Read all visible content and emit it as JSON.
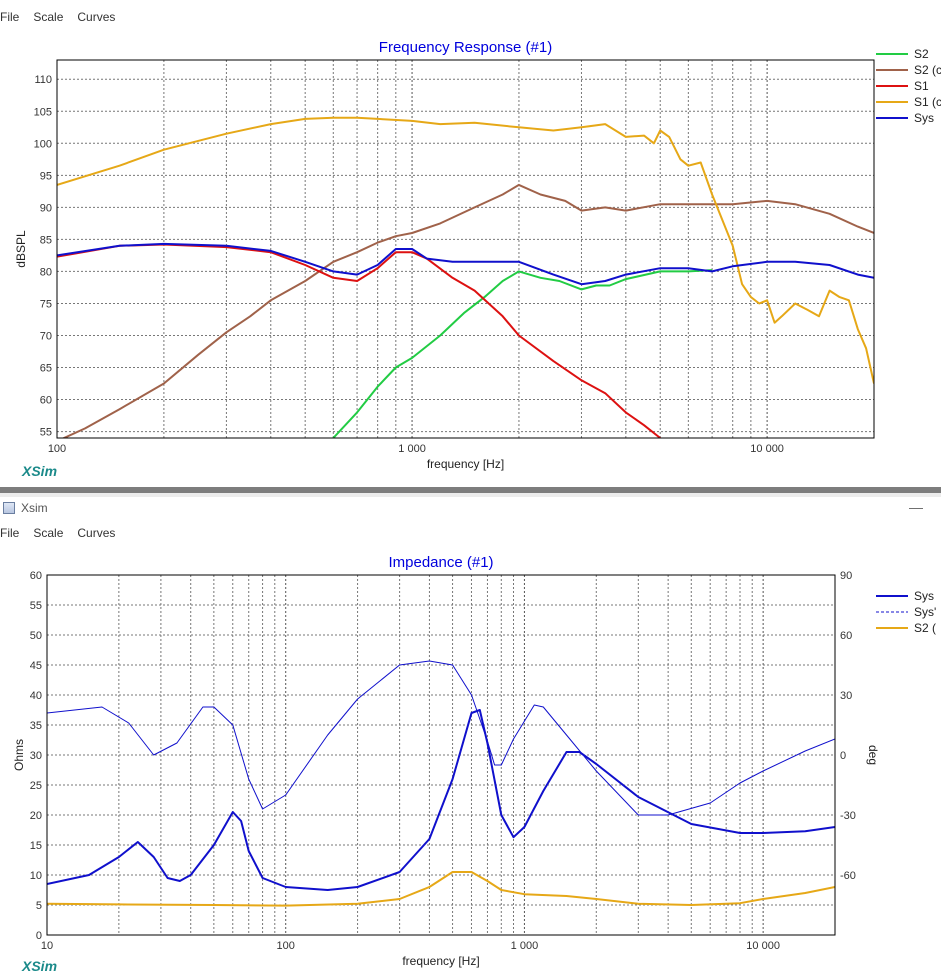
{
  "window": {
    "title": "Xsim",
    "minimize_glyph": "—"
  },
  "menu": {
    "items": [
      "File",
      "Scale",
      "Curves"
    ]
  },
  "brand": "XSim",
  "chart_data": [
    {
      "type": "line",
      "title": "Frequency Response (#1)",
      "xlabel": "frequency [Hz]",
      "ylabel": "dBSPL",
      "xscale": "log",
      "xlim": [
        100,
        20000
      ],
      "ylim": [
        54,
        113
      ],
      "xticklabels": [
        {
          "v": 100,
          "t": "100"
        },
        {
          "v": 1000,
          "t": "1 000"
        },
        {
          "v": 10000,
          "t": "10 000"
        }
      ],
      "yticks": [
        55,
        60,
        65,
        70,
        75,
        80,
        85,
        90,
        95,
        100,
        105,
        110
      ],
      "grid": true,
      "legend_position": "right",
      "series": [
        {
          "name": "S2",
          "color": "#22cc44",
          "style": "solid",
          "width": 2,
          "points": [
            [
              600,
              54
            ],
            [
              700,
              58
            ],
            [
              800,
              62
            ],
            [
              900,
              65
            ],
            [
              1000,
              66.5
            ],
            [
              1200,
              70
            ],
            [
              1400,
              73.5
            ],
            [
              1600,
              76
            ],
            [
              1800,
              78.5
            ],
            [
              2000,
              80
            ],
            [
              2300,
              79
            ],
            [
              2600,
              78.5
            ],
            [
              3000,
              77.2
            ],
            [
              3300,
              77.8
            ],
            [
              3600,
              77.8
            ],
            [
              4000,
              78.8
            ],
            [
              5000,
              80
            ],
            [
              6000,
              80
            ],
            [
              7000,
              80.2
            ]
          ]
        },
        {
          "name": "S2 (c",
          "color": "#a0624a",
          "style": "solid",
          "width": 2,
          "points": [
            [
              100,
              53.5
            ],
            [
              120,
              55.5
            ],
            [
              150,
              58.5
            ],
            [
              200,
              62.5
            ],
            [
              250,
              67
            ],
            [
              300,
              70.5
            ],
            [
              350,
              73
            ],
            [
              400,
              75.5
            ],
            [
              500,
              78.5
            ],
            [
              600,
              81.5
            ],
            [
              700,
              83
            ],
            [
              800,
              84.5
            ],
            [
              900,
              85.5
            ],
            [
              1000,
              86
            ],
            [
              1200,
              87.5
            ],
            [
              1500,
              90
            ],
            [
              1800,
              92
            ],
            [
              2000,
              93.5
            ],
            [
              2300,
              92
            ],
            [
              2700,
              91
            ],
            [
              3000,
              89.5
            ],
            [
              3500,
              90
            ],
            [
              4000,
              89.5
            ],
            [
              5000,
              90.5
            ],
            [
              6000,
              90.5
            ],
            [
              7000,
              90.5
            ],
            [
              8000,
              90.5
            ],
            [
              10000,
              91
            ],
            [
              12000,
              90.5
            ],
            [
              15000,
              89
            ],
            [
              18000,
              87
            ],
            [
              20000,
              86
            ]
          ]
        },
        {
          "name": "S1",
          "color": "#dd1111",
          "style": "solid",
          "width": 2,
          "points": [
            [
              100,
              82.3
            ],
            [
              150,
              84
            ],
            [
              200,
              84.2
            ],
            [
              300,
              83.8
            ],
            [
              400,
              83
            ],
            [
              500,
              81
            ],
            [
              600,
              79
            ],
            [
              700,
              78.5
            ],
            [
              800,
              80.5
            ],
            [
              900,
              83
            ],
            [
              1000,
              83
            ],
            [
              1100,
              82
            ],
            [
              1300,
              79
            ],
            [
              1500,
              77
            ],
            [
              1800,
              73
            ],
            [
              2000,
              70
            ],
            [
              2500,
              66
            ],
            [
              3000,
              63
            ],
            [
              3500,
              61
            ],
            [
              4000,
              58
            ],
            [
              4500,
              56
            ],
            [
              5000,
              54
            ]
          ]
        },
        {
          "name": "S1 (c",
          "color": "#e6a817",
          "style": "solid",
          "width": 2,
          "points": [
            [
              100,
              93.5
            ],
            [
              150,
              96.5
            ],
            [
              200,
              99
            ],
            [
              300,
              101.5
            ],
            [
              400,
              103
            ],
            [
              500,
              103.8
            ],
            [
              600,
              104
            ],
            [
              700,
              104
            ],
            [
              800,
              103.8
            ],
            [
              1000,
              103.5
            ],
            [
              1200,
              103
            ],
            [
              1500,
              103.2
            ],
            [
              2000,
              102.5
            ],
            [
              2500,
              102
            ],
            [
              3000,
              102.5
            ],
            [
              3500,
              103
            ],
            [
              4000,
              101
            ],
            [
              4500,
              101.2
            ],
            [
              4800,
              100
            ],
            [
              5000,
              102
            ],
            [
              5300,
              101
            ],
            [
              5700,
              97.5
            ],
            [
              6000,
              96.5
            ],
            [
              6500,
              97
            ],
            [
              7000,
              92
            ],
            [
              8000,
              84
            ],
            [
              8500,
              78
            ],
            [
              9000,
              76
            ],
            [
              9500,
              75
            ],
            [
              10000,
              75.5
            ],
            [
              10500,
              72
            ],
            [
              11000,
              73
            ],
            [
              12000,
              75
            ],
            [
              13000,
              74
            ],
            [
              14000,
              73
            ],
            [
              15000,
              77
            ],
            [
              16000,
              76
            ],
            [
              17000,
              75.5
            ],
            [
              18000,
              71
            ],
            [
              19000,
              68
            ],
            [
              20000,
              62.5
            ]
          ]
        },
        {
          "name": "Sys",
          "color": "#1010cc",
          "style": "solid",
          "width": 2,
          "points": [
            [
              100,
              82.5
            ],
            [
              150,
              84
            ],
            [
              200,
              84.3
            ],
            [
              300,
              84
            ],
            [
              400,
              83.2
            ],
            [
              500,
              81.5
            ],
            [
              600,
              80
            ],
            [
              700,
              79.5
            ],
            [
              800,
              81
            ],
            [
              900,
              83.5
            ],
            [
              1000,
              83.5
            ],
            [
              1100,
              82
            ],
            [
              1300,
              81.5
            ],
            [
              1600,
              81.5
            ],
            [
              2000,
              81.5
            ],
            [
              2500,
              79.5
            ],
            [
              3000,
              78
            ],
            [
              3500,
              78.5
            ],
            [
              4000,
              79.5
            ],
            [
              5000,
              80.5
            ],
            [
              6000,
              80.5
            ],
            [
              7000,
              80
            ],
            [
              8000,
              80.8
            ],
            [
              10000,
              81.5
            ],
            [
              12000,
              81.5
            ],
            [
              15000,
              81
            ],
            [
              18000,
              79.5
            ],
            [
              20000,
              79
            ]
          ]
        }
      ]
    },
    {
      "type": "line",
      "title": "Impedance (#1)",
      "xlabel": "frequency [Hz]",
      "ylabel": "Ohms",
      "y2label": "deg",
      "xscale": "log",
      "xlim": [
        10,
        20000
      ],
      "ylim": [
        0,
        60
      ],
      "y2lim": [
        -90,
        90
      ],
      "xticklabels": [
        {
          "v": 10,
          "t": "10"
        },
        {
          "v": 100,
          "t": "100"
        },
        {
          "v": 1000,
          "t": "1 000"
        },
        {
          "v": 10000,
          "t": "10 000"
        }
      ],
      "yticks": [
        0,
        5,
        10,
        15,
        20,
        25,
        30,
        35,
        40,
        45,
        50,
        55,
        60
      ],
      "y2ticks": [
        -60,
        -30,
        0,
        30,
        60,
        90
      ],
      "grid": true,
      "legend_position": "right",
      "series": [
        {
          "name": "Sys",
          "color": "#1010cc",
          "style": "solid",
          "width": 2,
          "axis": "left",
          "points": [
            [
              10,
              8.5
            ],
            [
              15,
              10
            ],
            [
              20,
              13
            ],
            [
              24,
              15.5
            ],
            [
              28,
              13
            ],
            [
              32,
              9.5
            ],
            [
              36,
              9
            ],
            [
              40,
              10
            ],
            [
              50,
              15
            ],
            [
              60,
              20.5
            ],
            [
              65,
              19
            ],
            [
              70,
              14
            ],
            [
              80,
              9.5
            ],
            [
              100,
              8
            ],
            [
              150,
              7.5
            ],
            [
              200,
              8
            ],
            [
              300,
              10.5
            ],
            [
              400,
              16
            ],
            [
              500,
              26
            ],
            [
              600,
              37
            ],
            [
              650,
              37.5
            ],
            [
              700,
              32
            ],
            [
              800,
              20
            ],
            [
              900,
              16.3
            ],
            [
              1000,
              18
            ],
            [
              1200,
              24
            ],
            [
              1500,
              30.5
            ],
            [
              1700,
              30.5
            ],
            [
              2000,
              28.5
            ],
            [
              3000,
              23
            ],
            [
              5000,
              18.5
            ],
            [
              8000,
              17
            ],
            [
              10000,
              17
            ],
            [
              15000,
              17.3
            ],
            [
              20000,
              18
            ]
          ]
        },
        {
          "name": "Sys'",
          "color": "#1010cc",
          "style": "solid",
          "width": 1,
          "axis": "right",
          "points": [
            [
              10,
              21
            ],
            [
              17,
              24
            ],
            [
              22,
              16
            ],
            [
              28,
              0
            ],
            [
              35,
              6
            ],
            [
              45,
              24
            ],
            [
              50,
              24
            ],
            [
              60,
              15
            ],
            [
              70,
              -12
            ],
            [
              80,
              -27
            ],
            [
              100,
              -20
            ],
            [
              150,
              10
            ],
            [
              200,
              28
            ],
            [
              300,
              45
            ],
            [
              400,
              47
            ],
            [
              500,
              45
            ],
            [
              600,
              30
            ],
            [
              700,
              7
            ],
            [
              750,
              -5
            ],
            [
              800,
              -5
            ],
            [
              900,
              8
            ],
            [
              1100,
              25
            ],
            [
              1200,
              24
            ],
            [
              1500,
              10
            ],
            [
              2000,
              -8
            ],
            [
              3000,
              -30
            ],
            [
              4000,
              -30
            ],
            [
              6000,
              -24
            ],
            [
              8000,
              -14
            ],
            [
              10000,
              -8
            ],
            [
              15000,
              2
            ],
            [
              20000,
              8
            ]
          ]
        },
        {
          "name": "S2 (",
          "color": "#e6a817",
          "style": "solid",
          "width": 2,
          "axis": "left",
          "points": [
            [
              10,
              5.2
            ],
            [
              20,
              5.1
            ],
            [
              50,
              5
            ],
            [
              100,
              4.9
            ],
            [
              200,
              5.2
            ],
            [
              300,
              6
            ],
            [
              400,
              8
            ],
            [
              500,
              10.5
            ],
            [
              600,
              10.5
            ],
            [
              700,
              9
            ],
            [
              800,
              7.5
            ],
            [
              1000,
              6.8
            ],
            [
              1500,
              6.5
            ],
            [
              2000,
              6
            ],
            [
              3000,
              5.2
            ],
            [
              5000,
              5
            ],
            [
              8000,
              5.3
            ],
            [
              10000,
              6
            ],
            [
              15000,
              7
            ],
            [
              20000,
              8
            ]
          ]
        }
      ]
    }
  ]
}
